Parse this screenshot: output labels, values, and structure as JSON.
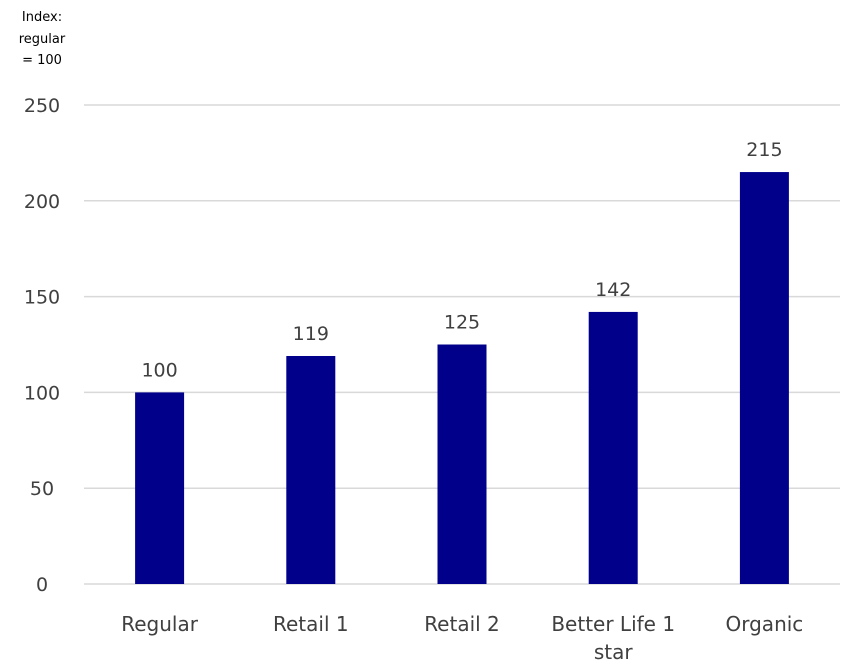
{
  "chart_data": {
    "type": "bar",
    "ylabel_lines": [
      "Index:",
      "regular",
      "= 100"
    ],
    "categories": [
      [
        "Regular"
      ],
      [
        "Retail 1"
      ],
      [
        "Retail 2"
      ],
      [
        "Better Life 1",
        "star"
      ],
      [
        "Organic"
      ]
    ],
    "values": [
      100,
      119,
      125,
      142,
      215
    ],
    "data_labels": [
      "100",
      "119",
      "125",
      "142",
      "215"
    ],
    "yticks": [
      "0",
      "50",
      "100",
      "150",
      "200",
      "250"
    ],
    "ylim": [
      0,
      250
    ],
    "grid": true,
    "bar_color": "#00008B",
    "grid_color": "#D9D9D9"
  }
}
